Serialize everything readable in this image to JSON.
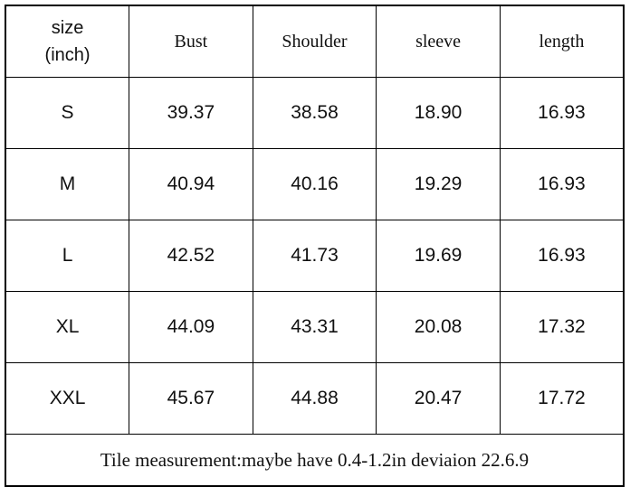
{
  "table": {
    "header": [
      "size\n(inch)",
      "Bust",
      "Shoulder",
      "sleeve",
      "length"
    ],
    "rows": [
      [
        "S",
        "39.37",
        "38.58",
        "18.90",
        "16.93"
      ],
      [
        "M",
        "40.94",
        "40.16",
        "19.29",
        "16.93"
      ],
      [
        "L",
        "42.52",
        "41.73",
        "19.69",
        "16.93"
      ],
      [
        "XL",
        "44.09",
        "43.31",
        "20.08",
        "17.32"
      ],
      [
        "XXL",
        "45.67",
        "44.88",
        "20.47",
        "17.72"
      ]
    ],
    "footer": "Tile measurement:maybe have 0.4-1.2in deviaion 22.6.9"
  }
}
